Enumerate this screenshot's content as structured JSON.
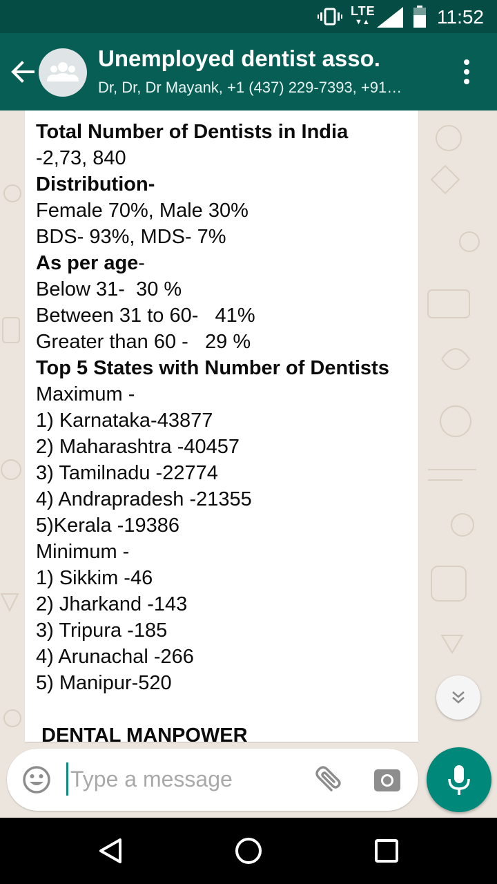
{
  "status_bar": {
    "network": "LTE",
    "time": "11:52"
  },
  "header": {
    "title": "Unemployed dentist asso.",
    "subtitle": "Dr, Dr, Dr Mayank, +1 (437) 229-7393, +91…"
  },
  "message": {
    "lines": [
      {
        "text": "Total Number of Dentists in India",
        "style": "bold"
      },
      {
        "text": "-2,73, 840",
        "style": "normal"
      },
      {
        "text": "Distribution-",
        "style": "bold"
      },
      {
        "text": "Female 70%, Male 30%",
        "style": "normal"
      },
      {
        "text": "BDS- 93%, MDS- 7%",
        "style": "normal"
      },
      {
        "text": "As per age",
        "style": "bold",
        "suffix": "-"
      },
      {
        "text": "Below 31-  30 %",
        "style": "normal"
      },
      {
        "text": "Between 31 to 60-   41%",
        "style": "normal"
      },
      {
        "text": "Greater than 60 -   29 %",
        "style": "normal"
      },
      {
        "text": "Top 5 States with Number of Dentists",
        "style": "bold"
      },
      {
        "text": "Maximum -",
        "style": "normal"
      },
      {
        "text": "1) Karnataka-43877",
        "style": "normal"
      },
      {
        "text": "2) Maharashtra -40457",
        "style": "normal"
      },
      {
        "text": "3) Tamilnadu -22774",
        "style": "normal"
      },
      {
        "text": "4) Andrapradesh -21355",
        "style": "normal"
      },
      {
        "text": "5)Kerala -19386",
        "style": "normal"
      },
      {
        "text": "Minimum -",
        "style": "normal"
      },
      {
        "text": "1) Sikkim -46",
        "style": "normal"
      },
      {
        "text": "2) Jharkand -143",
        "style": "normal"
      },
      {
        "text": "3) Tripura -185",
        "style": "normal"
      },
      {
        "text": "4) Arunachal -266",
        "style": "normal"
      },
      {
        "text": "5) Manipur-520",
        "style": "normal"
      },
      {
        "text": "DENTAL MANPOWER",
        "style": "heading"
      }
    ]
  },
  "composer": {
    "placeholder": "Type a message"
  },
  "icons": {
    "back": "arrow-back-icon",
    "avatar": "group-avatar-icon",
    "menu": "more-vert-icon",
    "emoji": "emoji-icon",
    "attach": "paperclip-icon",
    "camera": "camera-icon",
    "mic": "mic-icon",
    "scroll": "double-chevron-down-icon"
  },
  "colors": {
    "status_bar": "#054d44",
    "app_bar": "#075e54",
    "accent": "#00897b",
    "chat_background": "#ece5dd",
    "bubble": "#ffffff"
  }
}
